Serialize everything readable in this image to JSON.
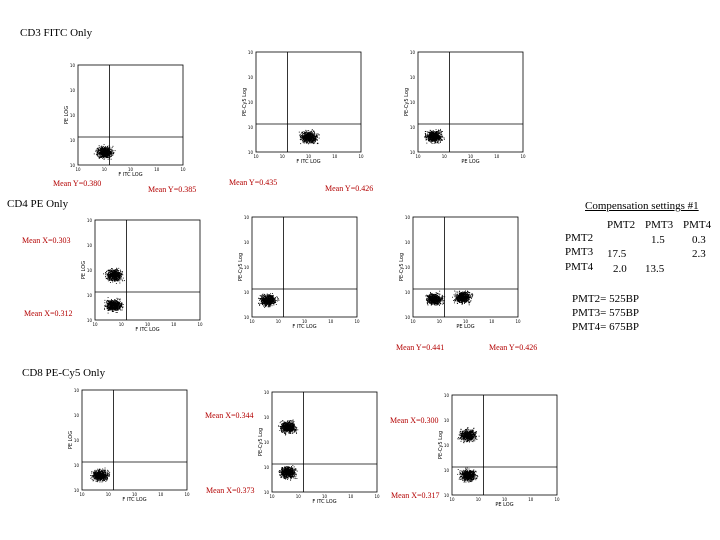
{
  "sections": [
    {
      "title": "CD3 FITC Only"
    },
    {
      "title": "CD4 PE Only"
    },
    {
      "title": "CD8 PE-Cy5 Only"
    }
  ],
  "mean_labels": {
    "r1": [
      "Mean Y=0.380",
      "Mean Y=0.385",
      "Mean Y=0.435",
      "Mean Y=0.426"
    ],
    "r2_left": [
      "Mean X=0.303",
      "Mean X=0.312"
    ],
    "r2_bottom": [
      "Mean Y=0.441",
      "Mean Y=0.426"
    ],
    "r3": [
      "Mean X=0.344",
      "Mean X=0.373",
      "Mean X=0.300",
      "Mean X=0.317"
    ]
  },
  "compensation": {
    "title": "Compensation settings #1",
    "columns": [
      "PMT2",
      "PMT3",
      "PMT4"
    ],
    "rows": [
      {
        "label": "PMT2",
        "values": [
          "",
          "1.5",
          "0.3"
        ]
      },
      {
        "label": "PMT3",
        "values": [
          "17.5",
          "",
          "2.3"
        ]
      },
      {
        "label": "PMT4",
        "values": [
          "2.0",
          "13.5",
          ""
        ]
      }
    ],
    "pmt_settings": [
      "PMT2= 525BP",
      "PMT3= 575BP",
      "PMT4= 675BP"
    ]
  },
  "chart_data": [
    {
      "type": "scatter",
      "xlabel": "F ITC LOG",
      "ylabel": "PE LOG",
      "populations": [
        {
          "x_frac": 0.25,
          "y_frac": 0.13
        }
      ]
    },
    {
      "type": "scatter",
      "xlabel": "F ITC LOG",
      "ylabel": "PE-Cy5 Log",
      "populations": [
        {
          "x_frac": 0.5,
          "y_frac": 0.15
        }
      ]
    },
    {
      "type": "scatter",
      "xlabel": "PE LOG",
      "ylabel": "PE-Cy5 Log",
      "populations": [
        {
          "x_frac": 0.15,
          "y_frac": 0.16
        }
      ]
    },
    {
      "type": "scatter",
      "xlabel": "F ITC LOG",
      "ylabel": "PE LOG",
      "populations": [
        {
          "x_frac": 0.18,
          "y_frac": 0.45
        },
        {
          "x_frac": 0.18,
          "y_frac": 0.15
        }
      ]
    },
    {
      "type": "scatter",
      "xlabel": "F ITC LOG",
      "ylabel": "PE-Cy5 Log",
      "populations": [
        {
          "x_frac": 0.15,
          "y_frac": 0.17
        }
      ]
    },
    {
      "type": "scatter",
      "xlabel": "PE LOG",
      "ylabel": "PE-Cy5 Log",
      "populations": [
        {
          "x_frac": 0.2,
          "y_frac": 0.18
        },
        {
          "x_frac": 0.47,
          "y_frac": 0.2
        }
      ]
    },
    {
      "type": "scatter",
      "xlabel": "F ITC LOG",
      "ylabel": "PE LOG",
      "populations": [
        {
          "x_frac": 0.17,
          "y_frac": 0.15
        }
      ]
    },
    {
      "type": "scatter",
      "xlabel": "F ITC LOG",
      "ylabel": "PE-Cy5 Log",
      "populations": [
        {
          "x_frac": 0.15,
          "y_frac": 0.65
        },
        {
          "x_frac": 0.15,
          "y_frac": 0.2
        }
      ]
    },
    {
      "type": "scatter",
      "xlabel": "PE LOG",
      "ylabel": "PE-Cy5 Log",
      "populations": [
        {
          "x_frac": 0.15,
          "y_frac": 0.6
        },
        {
          "x_frac": 0.15,
          "y_frac": 0.2
        }
      ]
    }
  ]
}
